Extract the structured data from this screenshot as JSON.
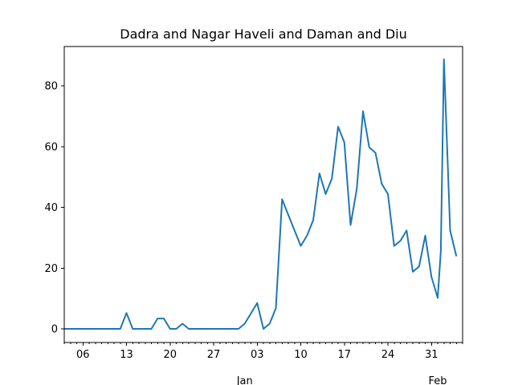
{
  "chart_data": {
    "type": "line",
    "title": "Dadra and Nagar Haveli and Daman and Diu",
    "xlabel": "",
    "ylabel": "",
    "x_start": "2020-12-03",
    "xlim": [
      "2020-12-03",
      "2021-02-05"
    ],
    "ylim": [
      -4.5,
      93
    ],
    "grid": false,
    "x_ticks": [
      {
        "label": "06",
        "date": "2020-12-06"
      },
      {
        "label": "13",
        "date": "2020-12-13"
      },
      {
        "label": "20",
        "date": "2020-12-20"
      },
      {
        "label": "27",
        "date": "2020-12-27"
      },
      {
        "label": "03",
        "date": "2021-01-03"
      },
      {
        "label": "10",
        "date": "2021-01-10"
      },
      {
        "label": "17",
        "date": "2021-01-17"
      },
      {
        "label": "24",
        "date": "2021-01-24"
      },
      {
        "label": "31",
        "date": "2021-01-31"
      }
    ],
    "x_month_labels": [
      {
        "label": "Jan",
        "date": "2021-01-01"
      },
      {
        "label": "Feb",
        "date": "2021-02-01"
      }
    ],
    "y_ticks": [
      0,
      20,
      40,
      60,
      80
    ],
    "series": [
      {
        "color": "#1f77b4",
        "points": [
          [
            "2020-12-03",
            0
          ],
          [
            "2020-12-04",
            0
          ],
          [
            "2020-12-05",
            0
          ],
          [
            "2020-12-06",
            0
          ],
          [
            "2020-12-07",
            0
          ],
          [
            "2020-12-08",
            0
          ],
          [
            "2020-12-09",
            0
          ],
          [
            "2020-12-10",
            0
          ],
          [
            "2020-12-11",
            0
          ],
          [
            "2020-12-12",
            0
          ],
          [
            "2020-12-13",
            5.2
          ],
          [
            "2020-12-14",
            0
          ],
          [
            "2020-12-15",
            0
          ],
          [
            "2020-12-16",
            0
          ],
          [
            "2020-12-17",
            0
          ],
          [
            "2020-12-18",
            3.4
          ],
          [
            "2020-12-19",
            3.4
          ],
          [
            "2020-12-20",
            0
          ],
          [
            "2020-12-21",
            0
          ],
          [
            "2020-12-22",
            1.7
          ],
          [
            "2020-12-23",
            0
          ],
          [
            "2020-12-24",
            0
          ],
          [
            "2020-12-25",
            0
          ],
          [
            "2020-12-26",
            0
          ],
          [
            "2020-12-27",
            0
          ],
          [
            "2020-12-28",
            0
          ],
          [
            "2020-12-29",
            0
          ],
          [
            "2020-12-30",
            0
          ],
          [
            "2020-12-31",
            0
          ],
          [
            "2021-01-01",
            1.7
          ],
          [
            "2021-01-02",
            5.1
          ],
          [
            "2021-01-03",
            8.5
          ],
          [
            "2021-01-04",
            0
          ],
          [
            "2021-01-05",
            1.7
          ],
          [
            "2021-01-06",
            6.8
          ],
          [
            "2021-01-07",
            42.7
          ],
          [
            "2021-01-08",
            37.5
          ],
          [
            "2021-01-09",
            32.4
          ],
          [
            "2021-01-10",
            27.3
          ],
          [
            "2021-01-11",
            30.7
          ],
          [
            "2021-01-12",
            35.8
          ],
          [
            "2021-01-13",
            51.2
          ],
          [
            "2021-01-14",
            44.4
          ],
          [
            "2021-01-15",
            49.5
          ],
          [
            "2021-01-16",
            66.6
          ],
          [
            "2021-01-17",
            61.4
          ],
          [
            "2021-01-18",
            34.2
          ],
          [
            "2021-01-19",
            46.1
          ],
          [
            "2021-01-20",
            71.7
          ],
          [
            "2021-01-21",
            59.8
          ],
          [
            "2021-01-22",
            58.0
          ],
          [
            "2021-01-23",
            47.8
          ],
          [
            "2021-01-24",
            44.4
          ],
          [
            "2021-01-25",
            27.3
          ],
          [
            "2021-01-26",
            29.0
          ],
          [
            "2021-01-27",
            32.4
          ],
          [
            "2021-01-28",
            18.8
          ],
          [
            "2021-01-29",
            20.5
          ],
          [
            "2021-01-30",
            30.7
          ],
          [
            "2021-01-31",
            17.1
          ],
          [
            "2021-02-01",
            10.2
          ],
          [
            "2021-02-01T12:00",
            25.6
          ],
          [
            "2021-02-02",
            88.8
          ],
          [
            "2021-02-03",
            32.4
          ],
          [
            "2021-02-04",
            23.9
          ]
        ]
      }
    ]
  }
}
